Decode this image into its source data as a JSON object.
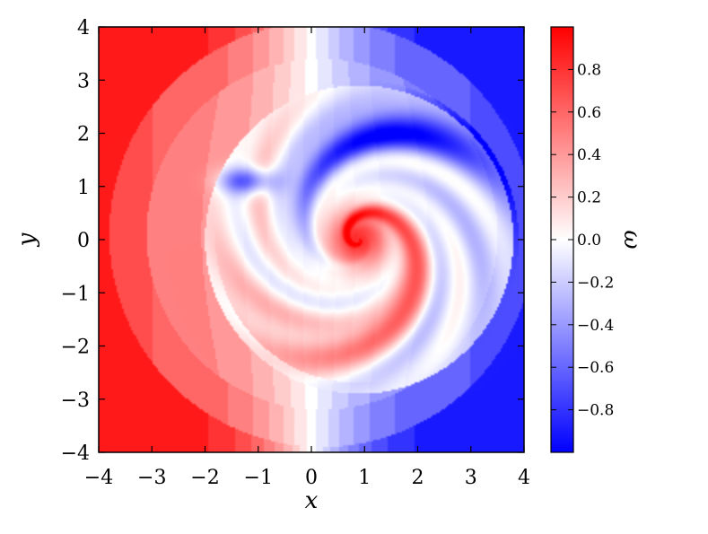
{
  "chart_data": {
    "type": "heatmap",
    "title": "",
    "xlabel": "x",
    "ylabel": "y",
    "xlim": [
      -4,
      4
    ],
    "ylim": [
      -4,
      4
    ],
    "x_ticks": [
      -4,
      -3,
      -2,
      -1,
      0,
      1,
      2,
      3,
      4
    ],
    "y_ticks": [
      -4,
      -3,
      -2,
      -1,
      0,
      1,
      2,
      3,
      4
    ],
    "x_tick_labels": [
      "−4",
      "−3",
      "−2",
      "−1",
      "0",
      "1",
      "2",
      "3",
      "4"
    ],
    "y_tick_labels": [
      "−4",
      "−3",
      "−2",
      "−1",
      "0",
      "1",
      "2",
      "3",
      "4"
    ],
    "grid": false,
    "colorbar": {
      "label": "ω",
      "range": [
        -1,
        1
      ],
      "colormap": "bwr",
      "ticks": [
        0.8,
        0.6,
        0.4,
        0.2,
        0.0,
        -0.2,
        -0.4,
        -0.6,
        -0.8
      ],
      "tick_labels": [
        "0.8",
        "0.6",
        "0.4",
        "0.2",
        "0.0",
        "−0.2",
        "−0.4",
        "−0.6",
        "−0.8"
      ],
      "colors": {
        "min": "#0000ff",
        "mid": "#ffffff",
        "max": "#ff0000"
      }
    },
    "field": {
      "description_of_values": "vorticity ω: background shear (red on left, blue on right), central red spiral vortex with blue and red filament arms",
      "background": {
        "left_value": 0.95,
        "right_value": -0.95,
        "mode": "shear_x"
      },
      "central_vortex": {
        "center": [
          0.9,
          0.0
        ],
        "peak_value": 0.9,
        "radius": 1.0
      },
      "outer_red_arm": {
        "peak_value": 0.75
      },
      "blue_arm": {
        "peak_value": -0.9,
        "tip_center": [
          -1.2,
          1.1
        ]
      },
      "disk_radius": 4.0
    }
  }
}
